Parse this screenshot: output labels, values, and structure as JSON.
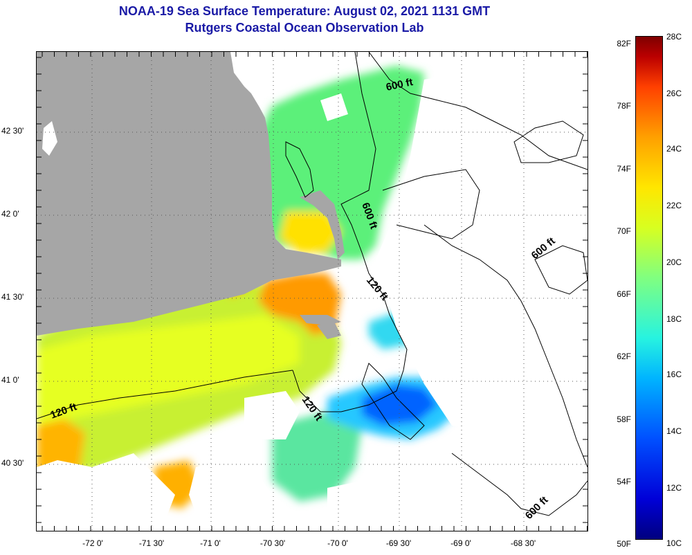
{
  "title": {
    "line1": "NOAA-19 Sea Surface Temperature:  August 02, 2021 1131 GMT",
    "line2": "Rutgers Coastal Ocean Observation Lab"
  },
  "axes": {
    "latitude_labels": [
      "42 30'",
      "42 0'",
      "41 30'",
      "41 0'",
      "40 30'"
    ],
    "longitude_labels": [
      "-72 0'",
      "-71 30'",
      "-71 0'",
      "-70 30'",
      "-70 0'",
      "-69 30'",
      "-69 0'",
      "-68 30'"
    ]
  },
  "contours": {
    "labels": [
      "600 ft",
      "600 ft",
      "600 ft",
      "600 ft",
      "120 ft",
      "120 ft",
      "120 ft"
    ]
  },
  "colorbar": {
    "fahrenheit_labels": [
      "82F",
      "78F",
      "74F",
      "70F",
      "66F",
      "62F",
      "58F",
      "54F",
      "50F"
    ],
    "celsius_labels": [
      "28C",
      "26C",
      "24C",
      "22C",
      "20C",
      "18C",
      "16C",
      "14C",
      "12C",
      "10C"
    ]
  },
  "colors": {
    "land": "#a6a6a6",
    "title": "#1a1aa6",
    "cold": "#0000d8",
    "warm": "#ff8000"
  }
}
